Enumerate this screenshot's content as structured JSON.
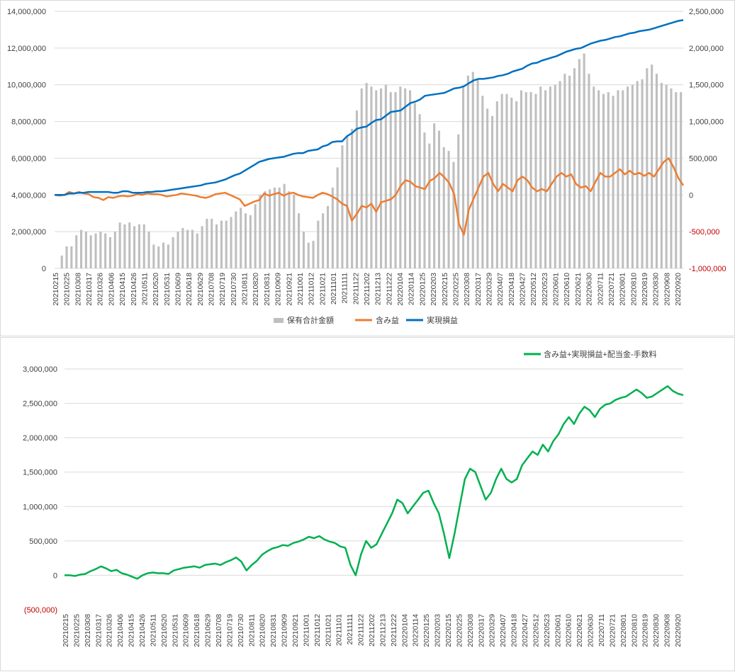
{
  "chart_data": [
    {
      "type": "bar+line",
      "title": "",
      "xlabel": "",
      "ylabel": "",
      "x_tick_labels": [
        "20210215",
        "20210225",
        "20210308",
        "20210317",
        "20210326",
        "20210406",
        "20210415",
        "20210426",
        "20210511",
        "20210520",
        "20210531",
        "20210609",
        "20210618",
        "20210629",
        "20210708",
        "20210719",
        "20210730",
        "20210811",
        "20210820",
        "20210831",
        "20210909",
        "20210921",
        "20211001",
        "20211012",
        "20211021",
        "20211101",
        "20211111",
        "20211122",
        "20211202",
        "20211213",
        "20211222",
        "20220104",
        "20220114",
        "20220125",
        "20220203",
        "20220215",
        "20220225",
        "20220308",
        "20220317",
        "20220329",
        "20220407",
        "20220418",
        "20220427",
        "20220512",
        "20220523",
        "20220601",
        "20220610",
        "20220621",
        "20220630",
        "20220711",
        "20220721",
        "20220801",
        "20220810",
        "20220819",
        "20220830",
        "20220908",
        "20220920"
      ],
      "y_left": {
        "ylim": [
          0,
          14000000
        ],
        "ticks": [
          "0",
          "2,000,000",
          "4,000,000",
          "6,000,000",
          "8,000,000",
          "10,000,000",
          "12,000,000",
          "14,000,000"
        ]
      },
      "y_right": {
        "ylim": [
          -1000000,
          2500000
        ],
        "ticks": [
          "-1,000,000",
          "-500,000",
          "0",
          "500,000",
          "1,000,000",
          "1,500,000",
          "2,000,000",
          "2,500,000"
        ],
        "negative_color": "#c00000"
      },
      "grid": true,
      "legend_position": "bottom",
      "series": [
        {
          "name": "保有合計金額",
          "kind": "bar",
          "axis": "left",
          "color": "#bfbfbf",
          "values": [
            0,
            700000,
            1200000,
            1200000,
            1800000,
            2100000,
            2000000,
            1800000,
            1900000,
            2000000,
            1900000,
            1700000,
            2000000,
            2500000,
            2400000,
            2500000,
            2300000,
            2400000,
            2400000,
            2000000,
            1300000,
            1200000,
            1400000,
            1300000,
            1700000,
            2000000,
            2200000,
            2100000,
            2100000,
            1900000,
            2300000,
            2700000,
            2700000,
            2400000,
            2600000,
            2600000,
            2800000,
            3100000,
            3300000,
            3000000,
            2900000,
            3500000,
            4000000,
            4200000,
            4300000,
            4400000,
            4400000,
            4600000,
            4200000,
            4000000,
            3000000,
            2000000,
            1400000,
            1500000,
            2600000,
            3000000,
            3400000,
            4400000,
            5500000,
            6700000,
            7200000,
            7600000,
            8600000,
            9800000,
            10100000,
            9900000,
            9700000,
            9800000,
            10000000,
            9600000,
            9600000,
            9900000,
            9800000,
            9700000,
            9000000,
            8400000,
            7400000,
            6800000,
            7900000,
            7500000,
            6600000,
            6400000,
            5800000,
            7300000,
            9900000,
            10500000,
            10700000,
            10300000,
            9400000,
            8700000,
            8300000,
            9100000,
            9500000,
            9500000,
            9300000,
            9100000,
            9700000,
            9600000,
            9600000,
            9500000,
            9900000,
            9700000,
            9900000,
            10000000,
            10200000,
            10600000,
            10500000,
            10900000,
            11400000,
            11700000,
            10600000,
            9900000,
            9700000,
            9500000,
            9600000,
            9400000,
            9700000,
            9700000,
            9900000,
            10000000,
            10200000,
            10300000,
            10900000,
            11100000,
            10600000,
            10100000,
            10000000,
            9800000,
            9600000,
            9600000
          ]
        },
        {
          "name": "含み益",
          "kind": "line",
          "axis": "right",
          "color": "#ed7d31",
          "values": [
            0,
            -10000,
            0,
            40000,
            20000,
            40000,
            20000,
            10000,
            -30000,
            -40000,
            -70000,
            -30000,
            -40000,
            -20000,
            -10000,
            -20000,
            -10000,
            10000,
            0,
            20000,
            10000,
            10000,
            0,
            -20000,
            -10000,
            0,
            20000,
            10000,
            0,
            -10000,
            -30000,
            -40000,
            -20000,
            10000,
            20000,
            30000,
            0,
            -30000,
            -60000,
            -150000,
            -120000,
            -90000,
            -70000,
            20000,
            -10000,
            10000,
            30000,
            -10000,
            20000,
            30000,
            0,
            -20000,
            -30000,
            -40000,
            0,
            30000,
            10000,
            -20000,
            -60000,
            -120000,
            -150000,
            -350000,
            -260000,
            -150000,
            -170000,
            -120000,
            -230000,
            -100000,
            -80000,
            -60000,
            0,
            120000,
            200000,
            180000,
            120000,
            100000,
            80000,
            190000,
            230000,
            300000,
            240000,
            160000,
            10000,
            -400000,
            -540000,
            -200000,
            -50000,
            100000,
            250000,
            300000,
            150000,
            50000,
            150000,
            100000,
            50000,
            200000,
            250000,
            200000,
            100000,
            50000,
            80000,
            50000,
            150000,
            250000,
            300000,
            250000,
            280000,
            150000,
            100000,
            120000,
            50000,
            180000,
            300000,
            250000,
            250000,
            300000,
            350000,
            280000,
            330000,
            280000,
            300000,
            260000,
            300000,
            250000,
            350000,
            450000,
            500000,
            380000,
            230000,
            130000
          ]
        },
        {
          "name": "実現損益",
          "kind": "line",
          "axis": "right",
          "color": "#0070c0",
          "values": [
            0,
            0,
            0,
            20000,
            20000,
            30000,
            30000,
            40000,
            40000,
            40000,
            40000,
            40000,
            30000,
            30000,
            50000,
            50000,
            30000,
            30000,
            30000,
            40000,
            40000,
            50000,
            50000,
            60000,
            70000,
            80000,
            90000,
            100000,
            110000,
            120000,
            130000,
            150000,
            160000,
            170000,
            190000,
            210000,
            240000,
            270000,
            290000,
            330000,
            370000,
            410000,
            450000,
            470000,
            490000,
            500000,
            510000,
            520000,
            540000,
            560000,
            570000,
            570000,
            600000,
            610000,
            620000,
            660000,
            680000,
            720000,
            730000,
            730000,
            800000,
            840000,
            900000,
            920000,
            930000,
            980000,
            1020000,
            1030000,
            1080000,
            1130000,
            1140000,
            1150000,
            1200000,
            1250000,
            1270000,
            1300000,
            1350000,
            1360000,
            1370000,
            1380000,
            1390000,
            1420000,
            1450000,
            1460000,
            1480000,
            1520000,
            1560000,
            1580000,
            1580000,
            1590000,
            1600000,
            1620000,
            1630000,
            1650000,
            1680000,
            1700000,
            1720000,
            1760000,
            1790000,
            1800000,
            1830000,
            1850000,
            1870000,
            1890000,
            1920000,
            1950000,
            1970000,
            1990000,
            2000000,
            2030000,
            2060000,
            2080000,
            2100000,
            2110000,
            2130000,
            2150000,
            2160000,
            2180000,
            2200000,
            2210000,
            2230000,
            2240000,
            2250000,
            2270000,
            2290000,
            2310000,
            2330000,
            2350000,
            2370000,
            2380000
          ]
        }
      ]
    },
    {
      "type": "line",
      "title": "",
      "xlabel": "",
      "ylabel": "",
      "x_tick_labels": [
        "20210215",
        "20210225",
        "20210308",
        "20210317",
        "20210326",
        "20210406",
        "20210415",
        "20210426",
        "20210511",
        "20210520",
        "20210531",
        "20210609",
        "20210618",
        "20210629",
        "20210708",
        "20210719",
        "20210730",
        "20210811",
        "20210820",
        "20210831",
        "20210909",
        "20210921",
        "20211001",
        "20211012",
        "20211021",
        "20211101",
        "20211111",
        "20211122",
        "20211202",
        "20211213",
        "20211222",
        "20220104",
        "20220114",
        "20220125",
        "20220203",
        "20220215",
        "20220225",
        "20220308",
        "20220317",
        "20220329",
        "20220407",
        "20220418",
        "20220427",
        "20220512",
        "20220523",
        "20220601",
        "20220610",
        "20220621",
        "20220630",
        "20220711",
        "20220721",
        "20220801",
        "20220810",
        "20220819",
        "20220830",
        "20220908",
        "20220920"
      ],
      "y": {
        "ylim": [
          -500000,
          3000000
        ],
        "ticks": [
          "(500,000)",
          "0",
          "500,000",
          "1,000,000",
          "1,500,000",
          "2,000,000",
          "2,500,000",
          "3,000,000"
        ],
        "negative_color": "#c00000"
      },
      "grid": true,
      "legend_position": "top-right",
      "series": [
        {
          "name": "含み益+実現損益+配当金-手数料",
          "color": "#00b050",
          "values": [
            0,
            0,
            -10000,
            10000,
            20000,
            60000,
            90000,
            130000,
            100000,
            60000,
            80000,
            30000,
            10000,
            -20000,
            -50000,
            0,
            30000,
            40000,
            30000,
            30000,
            20000,
            70000,
            90000,
            110000,
            120000,
            130000,
            110000,
            150000,
            160000,
            170000,
            150000,
            190000,
            220000,
            260000,
            200000,
            70000,
            150000,
            210000,
            300000,
            350000,
            390000,
            410000,
            440000,
            430000,
            470000,
            490000,
            520000,
            560000,
            540000,
            570000,
            520000,
            490000,
            470000,
            420000,
            400000,
            150000,
            0,
            300000,
            500000,
            400000,
            450000,
            600000,
            750000,
            900000,
            1100000,
            1050000,
            900000,
            1000000,
            1100000,
            1200000,
            1230000,
            1050000,
            900000,
            600000,
            250000,
            600000,
            1000000,
            1400000,
            1550000,
            1500000,
            1300000,
            1100000,
            1200000,
            1400000,
            1550000,
            1400000,
            1350000,
            1400000,
            1600000,
            1700000,
            1800000,
            1750000,
            1900000,
            1800000,
            1950000,
            2050000,
            2200000,
            2300000,
            2200000,
            2350000,
            2450000,
            2400000,
            2300000,
            2420000,
            2480000,
            2500000,
            2550000,
            2580000,
            2600000,
            2650000,
            2700000,
            2650000,
            2580000,
            2600000,
            2650000,
            2700000,
            2750000,
            2680000,
            2640000,
            2620000
          ]
        }
      ]
    }
  ]
}
